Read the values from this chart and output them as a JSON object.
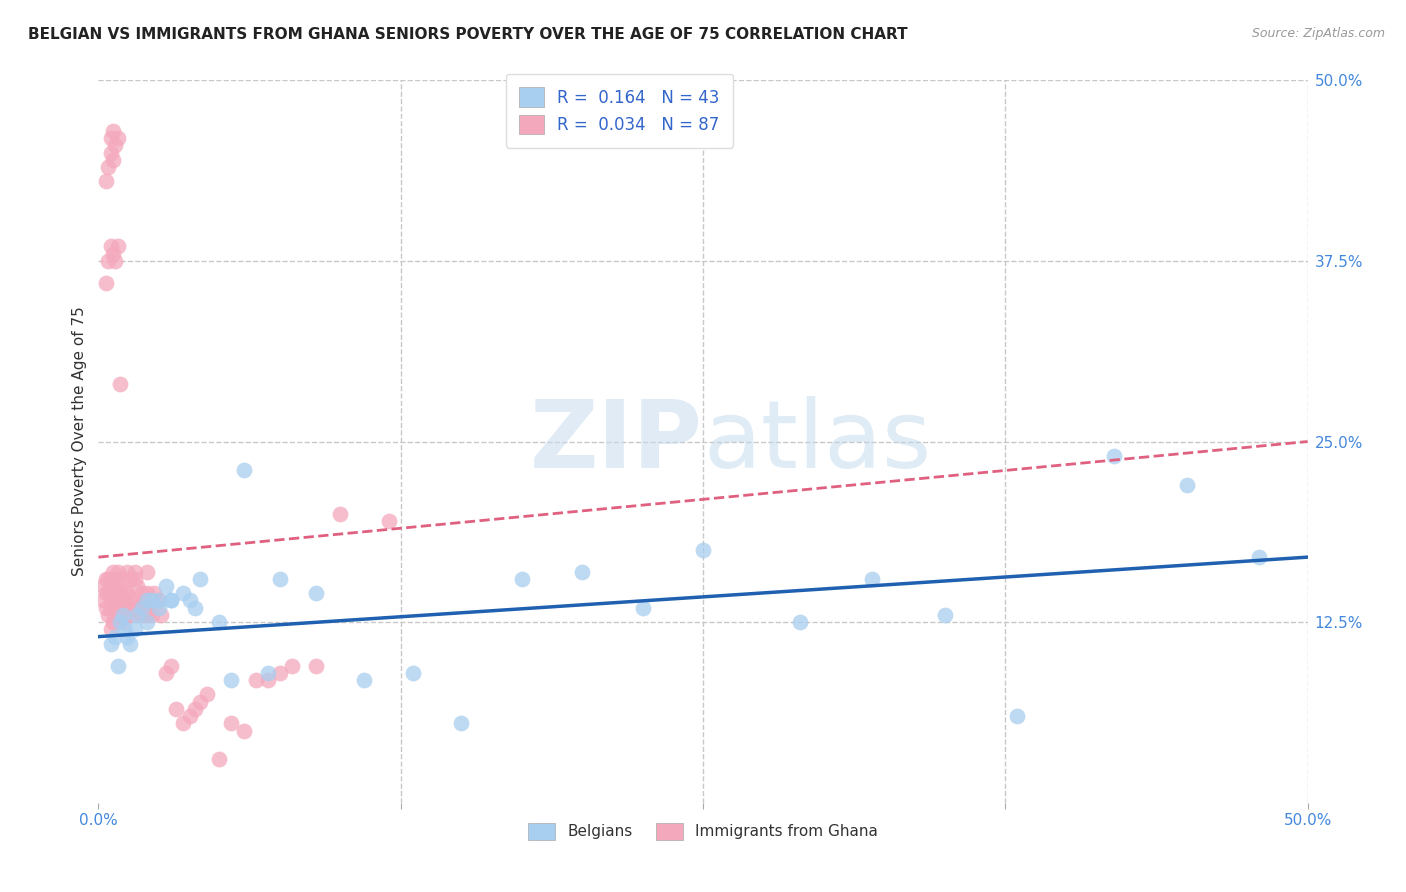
{
  "title": "BELGIAN VS IMMIGRANTS FROM GHANA SENIORS POVERTY OVER THE AGE OF 75 CORRELATION CHART",
  "source": "Source: ZipAtlas.com",
  "ylabel": "Seniors Poverty Over the Age of 75",
  "xlim": [
    0.0,
    0.5
  ],
  "ylim": [
    0.0,
    0.5
  ],
  "belgian_R": 0.164,
  "belgian_N": 43,
  "ghana_R": 0.034,
  "ghana_N": 87,
  "belgian_color": "#A8CEF0",
  "ghana_color": "#F4A8BC",
  "belgian_line_color": "#2060B0",
  "ghana_line_color": "#E06080",
  "legend_labels": [
    "Belgians",
    "Immigrants from Ghana"
  ],
  "bel_line_y0": 0.115,
  "bel_line_y1": 0.17,
  "gha_line_y0": 0.17,
  "gha_line_y1": 0.25,
  "bel_x": [
    0.005,
    0.007,
    0.008,
    0.009,
    0.01,
    0.011,
    0.012,
    0.013,
    0.015,
    0.016,
    0.018,
    0.02,
    0.022,
    0.025,
    0.028,
    0.03,
    0.035,
    0.038,
    0.042,
    0.05,
    0.06,
    0.075,
    0.09,
    0.11,
    0.13,
    0.15,
    0.175,
    0.2,
    0.225,
    0.25,
    0.29,
    0.32,
    0.35,
    0.38,
    0.42,
    0.45,
    0.48,
    0.02,
    0.025,
    0.03,
    0.04,
    0.055,
    0.07
  ],
  "bel_y": [
    0.11,
    0.115,
    0.095,
    0.125,
    0.13,
    0.12,
    0.115,
    0.11,
    0.12,
    0.13,
    0.135,
    0.125,
    0.14,
    0.135,
    0.15,
    0.14,
    0.145,
    0.14,
    0.155,
    0.125,
    0.23,
    0.155,
    0.145,
    0.085,
    0.09,
    0.055,
    0.155,
    0.16,
    0.135,
    0.175,
    0.125,
    0.155,
    0.13,
    0.06,
    0.24,
    0.22,
    0.17,
    0.14,
    0.14,
    0.14,
    0.135,
    0.085,
    0.09
  ],
  "gha_x": [
    0.002,
    0.002,
    0.003,
    0.003,
    0.003,
    0.004,
    0.004,
    0.004,
    0.005,
    0.005,
    0.005,
    0.005,
    0.006,
    0.006,
    0.006,
    0.006,
    0.007,
    0.007,
    0.007,
    0.008,
    0.008,
    0.008,
    0.008,
    0.009,
    0.009,
    0.01,
    0.01,
    0.01,
    0.011,
    0.011,
    0.012,
    0.012,
    0.012,
    0.013,
    0.013,
    0.013,
    0.014,
    0.015,
    0.015,
    0.015,
    0.016,
    0.016,
    0.017,
    0.018,
    0.018,
    0.019,
    0.02,
    0.02,
    0.02,
    0.021,
    0.022,
    0.023,
    0.025,
    0.026,
    0.028,
    0.03,
    0.032,
    0.035,
    0.038,
    0.04,
    0.042,
    0.045,
    0.05,
    0.055,
    0.06,
    0.065,
    0.07,
    0.075,
    0.08,
    0.09,
    0.1,
    0.12,
    0.005,
    0.006,
    0.007,
    0.008,
    0.003,
    0.004,
    0.005,
    0.006,
    0.003,
    0.004,
    0.005,
    0.006,
    0.007,
    0.008,
    0.009
  ],
  "gha_y": [
    0.14,
    0.15,
    0.135,
    0.145,
    0.155,
    0.13,
    0.145,
    0.155,
    0.12,
    0.135,
    0.145,
    0.155,
    0.125,
    0.14,
    0.15,
    0.16,
    0.13,
    0.145,
    0.155,
    0.135,
    0.15,
    0.14,
    0.16,
    0.13,
    0.145,
    0.125,
    0.14,
    0.155,
    0.135,
    0.145,
    0.13,
    0.145,
    0.16,
    0.135,
    0.14,
    0.155,
    0.13,
    0.14,
    0.155,
    0.16,
    0.135,
    0.15,
    0.135,
    0.13,
    0.145,
    0.14,
    0.13,
    0.145,
    0.16,
    0.135,
    0.13,
    0.145,
    0.14,
    0.13,
    0.09,
    0.095,
    0.065,
    0.055,
    0.06,
    0.065,
    0.07,
    0.075,
    0.03,
    0.055,
    0.05,
    0.085,
    0.085,
    0.09,
    0.095,
    0.095,
    0.2,
    0.195,
    0.46,
    0.465,
    0.455,
    0.46,
    0.43,
    0.44,
    0.45,
    0.445,
    0.36,
    0.375,
    0.385,
    0.38,
    0.375,
    0.385,
    0.29
  ]
}
